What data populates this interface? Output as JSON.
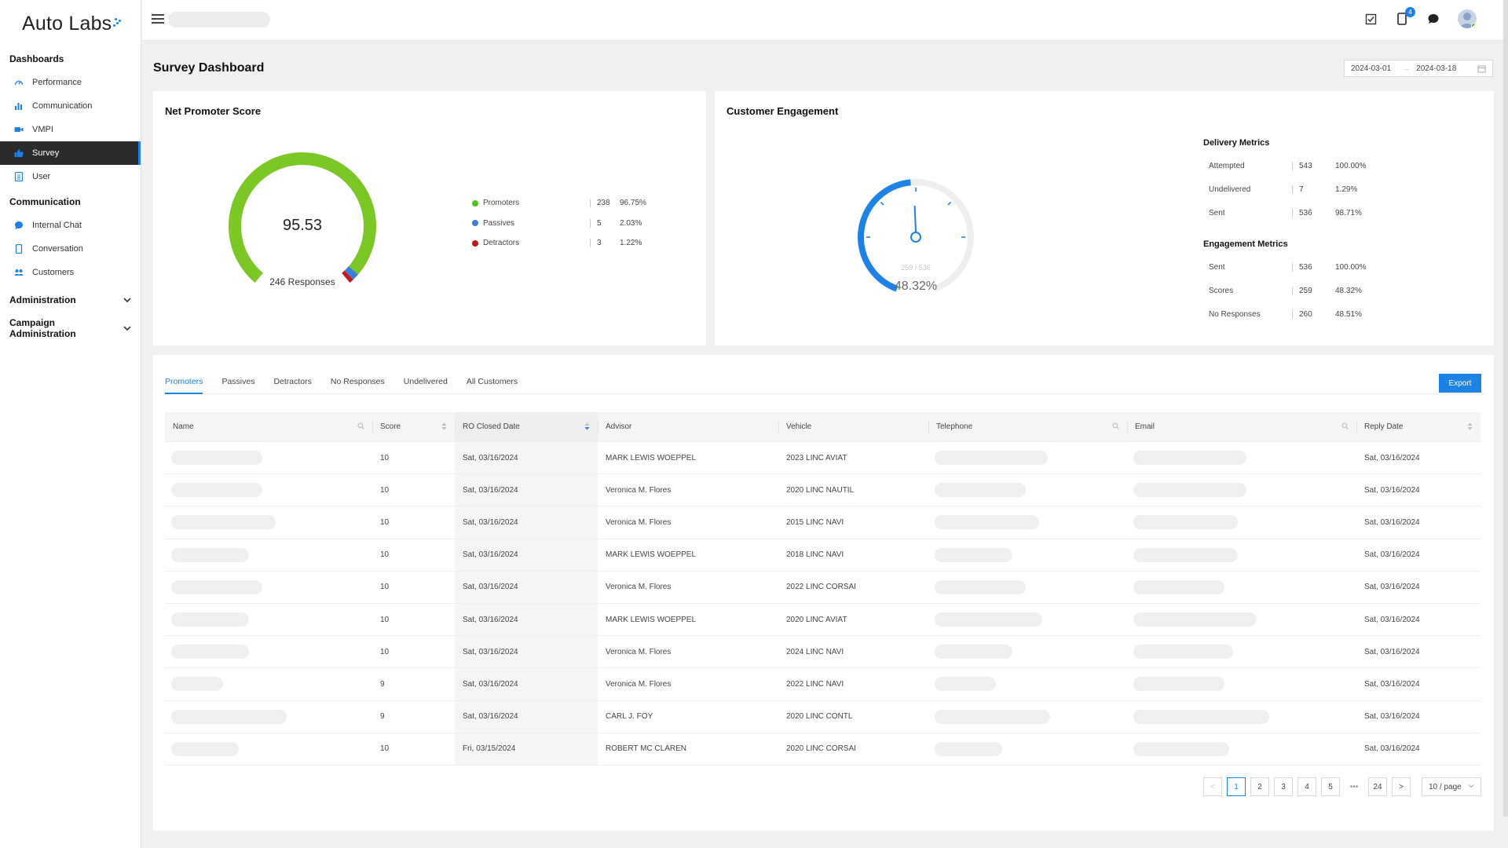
{
  "brand": {
    "logo_text": "Auto Labs"
  },
  "sidebar": {
    "dashboards_label": "Dashboards",
    "dashboards": [
      {
        "label": "Performance",
        "icon": "gauge-icon"
      },
      {
        "label": "Communication",
        "icon": "bar-chart-icon"
      },
      {
        "label": "VMPI",
        "icon": "video-icon"
      },
      {
        "label": "Survey",
        "icon": "thumbs-up-icon",
        "active": true
      },
      {
        "label": "User",
        "icon": "user-list-icon"
      }
    ],
    "communication_label": "Communication",
    "communication": [
      {
        "label": "Internal Chat",
        "icon": "chat-icon"
      },
      {
        "label": "Conversation",
        "icon": "mobile-icon"
      },
      {
        "label": "Customers",
        "icon": "users-icon"
      }
    ],
    "administration_label": "Administration",
    "campaign_admin_label": "Campaign Administration"
  },
  "header": {
    "notifications_count": "4"
  },
  "page": {
    "title": "Survey Dashboard",
    "date_start": "2024-03-01",
    "date_end": "2024-03-18",
    "date_separator": "→"
  },
  "nps": {
    "title": "Net Promoter Score",
    "score": "95.53",
    "responses_label": "246 Responses",
    "legend": [
      {
        "name": "Promoters",
        "count": "238",
        "pct": "96.75%",
        "color": "#52c41a"
      },
      {
        "name": "Passives",
        "count": "5",
        "pct": "2.03%",
        "color": "#3a7fd5"
      },
      {
        "name": "Detractors",
        "count": "3",
        "pct": "1.22%",
        "color": "#c4161c"
      }
    ]
  },
  "engagement": {
    "title": "Customer Engagement",
    "gauge_sub": "259 / 536",
    "gauge_value": "48.32%",
    "gauge_fraction": 0.4832,
    "delivery_title": "Delivery Metrics",
    "delivery": [
      {
        "name": "Attempted",
        "count": "543",
        "pct": "100.00%"
      },
      {
        "name": "Undelivered",
        "count": "7",
        "pct": "1.29%"
      },
      {
        "name": "Sent",
        "count": "536",
        "pct": "98.71%"
      }
    ],
    "engagement_title": "Engagement Metrics",
    "engagement": [
      {
        "name": "Sent",
        "count": "536",
        "pct": "100.00%"
      },
      {
        "name": "Scores",
        "count": "259",
        "pct": "48.32%"
      },
      {
        "name": "No Responses",
        "count": "260",
        "pct": "48.51%"
      }
    ]
  },
  "tabs": [
    "Promoters",
    "Passives",
    "Detractors",
    "No Responses",
    "Undelivered",
    "All Customers"
  ],
  "export_label": "Export",
  "table": {
    "columns": [
      "Name",
      "Score",
      "RO Closed Date",
      "Advisor",
      "Vehicle",
      "Telephone",
      "Email",
      "Reply Date"
    ],
    "rows": [
      {
        "score": "10",
        "ro_date": "Sat, 03/16/2024",
        "advisor": "MARK LEWIS WOEPPEL",
        "vehicle": "2023 LINC AVIAT",
        "reply": "Sat, 03/16/2024"
      },
      {
        "score": "10",
        "ro_date": "Sat, 03/16/2024",
        "advisor": "Veronica M. Flores",
        "vehicle": "2020 LINC NAUTIL",
        "reply": "Sat, 03/16/2024"
      },
      {
        "score": "10",
        "ro_date": "Sat, 03/16/2024",
        "advisor": "Veronica M. Flores",
        "vehicle": "2015 LINC NAVI",
        "reply": "Sat, 03/16/2024"
      },
      {
        "score": "10",
        "ro_date": "Sat, 03/16/2024",
        "advisor": "MARK LEWIS WOEPPEL",
        "vehicle": "2018 LINC NAVI",
        "reply": "Sat, 03/16/2024"
      },
      {
        "score": "10",
        "ro_date": "Sat, 03/16/2024",
        "advisor": "Veronica M. Flores",
        "vehicle": "2022 LINC CORSAI",
        "reply": "Sat, 03/16/2024"
      },
      {
        "score": "10",
        "ro_date": "Sat, 03/16/2024",
        "advisor": "MARK LEWIS WOEPPEL",
        "vehicle": "2020 LINC AVIAT",
        "reply": "Sat, 03/16/2024"
      },
      {
        "score": "10",
        "ro_date": "Sat, 03/16/2024",
        "advisor": "Veronica M. Flores",
        "vehicle": "2024 LINC NAVI",
        "reply": "Sat, 03/16/2024"
      },
      {
        "score": "9",
        "ro_date": "Sat, 03/16/2024",
        "advisor": "Veronica M. Flores",
        "vehicle": "2022 LINC NAVI",
        "reply": "Sat, 03/16/2024"
      },
      {
        "score": "9",
        "ro_date": "Sat, 03/16/2024",
        "advisor": "CARL J. FOY",
        "vehicle": "2020 LINC CONTL",
        "reply": "Sat, 03/16/2024"
      },
      {
        "score": "10",
        "ro_date": "Fri, 03/15/2024",
        "advisor": "ROBERT MC CLAREN",
        "vehicle": "2020 LINC CORSAI",
        "reply": "Sat, 03/16/2024"
      }
    ]
  },
  "pagination": {
    "prev": "<",
    "next": ">",
    "pages": [
      "1",
      "2",
      "3",
      "4",
      "5"
    ],
    "ellipsis": "•••",
    "last": "24",
    "current": "1",
    "page_size": "10 / page"
  }
}
